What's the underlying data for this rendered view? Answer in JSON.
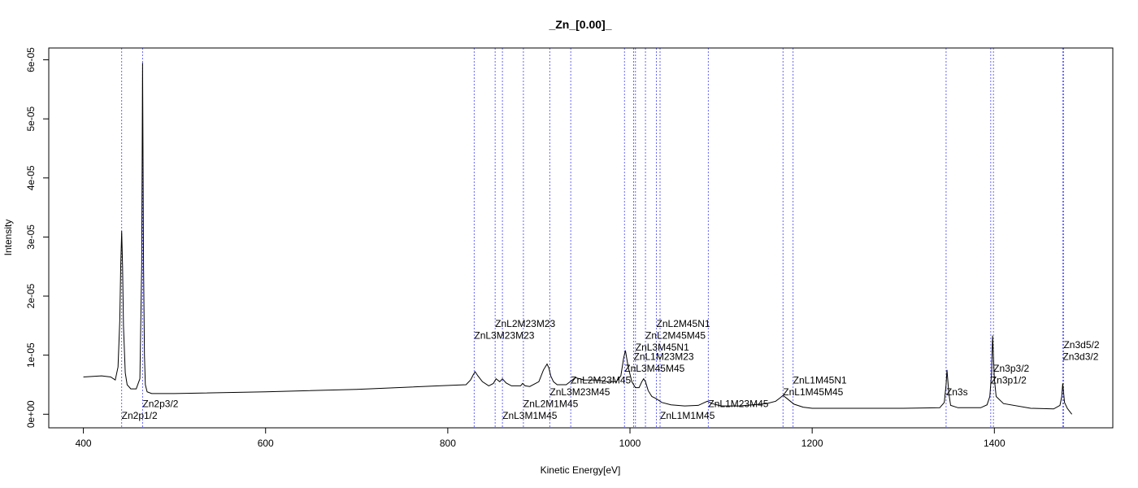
{
  "chart_data": {
    "type": "line",
    "title": "_Zn_[0.00]_",
    "xlabel": "Kinetic Energy[eV]",
    "ylabel": "Intensity",
    "xlim": [
      362,
      1530
    ],
    "ylim": [
      -2.3e-06,
      6.2e-05
    ],
    "x_ticks": [
      {
        "value": 400,
        "label": "400"
      },
      {
        "value": 600,
        "label": "600"
      },
      {
        "value": 800,
        "label": "800"
      },
      {
        "value": 1000,
        "label": "1000"
      },
      {
        "value": 1200,
        "label": "1200"
      },
      {
        "value": 1400,
        "label": "1400"
      }
    ],
    "y_ticks": [
      {
        "value": 0,
        "label": "0e+00"
      },
      {
        "value": 1e-05,
        "label": "1e-05"
      },
      {
        "value": 2e-05,
        "label": "2e-05"
      },
      {
        "value": 3e-05,
        "label": "3e-05"
      },
      {
        "value": 4e-05,
        "label": "4e-05"
      },
      {
        "value": 5e-05,
        "label": "5e-05"
      },
      {
        "value": 6e-05,
        "label": "6e-05"
      }
    ],
    "grid": false,
    "line_color": "#000000",
    "marker_line_color": "#6666ff",
    "series": [
      {
        "x": [
          400,
          420,
          430,
          435,
          438,
          440,
          441,
          442,
          443,
          444,
          446,
          448,
          452,
          458,
          462,
          464,
          465,
          466,
          467,
          468,
          470,
          475,
          480,
          500,
          600,
          700,
          790,
          820,
          825,
          828,
          830,
          833,
          838,
          845,
          850,
          853,
          857,
          860,
          864,
          870,
          880,
          882,
          885,
          890,
          900,
          905,
          909,
          911,
          913,
          916,
          920,
          930,
          940,
          950,
          965,
          975,
          985,
          990,
          993,
          995,
          998,
          1002,
          1006,
          1010,
          1013,
          1015,
          1017,
          1020,
          1024,
          1028,
          1030,
          1035,
          1045,
          1060,
          1075,
          1082,
          1085,
          1090,
          1100,
          1120,
          1150,
          1160,
          1165,
          1168,
          1172,
          1180,
          1190,
          1200,
          1300,
          1340,
          1345,
          1347,
          1348,
          1350,
          1352,
          1360,
          1385,
          1392,
          1395,
          1397,
          1398,
          1400,
          1402,
          1410,
          1440,
          1465,
          1472,
          1474,
          1475,
          1477,
          1480,
          1485
        ],
        "y": [
          6.3e-06,
          6.5e-06,
          6.3e-06,
          5.8e-06,
          8e-06,
          1.6e-05,
          2.5e-05,
          3.1e-05,
          2.5e-05,
          1.5e-05,
          7e-06,
          5e-06,
          4.3e-06,
          4.3e-06,
          6e-06,
          2.5e-05,
          5.95e-05,
          2.5e-05,
          1e-05,
          5e-06,
          3.8e-06,
          3.5e-06,
          3.5e-06,
          3.5e-06,
          3.8e-06,
          4.2e-06,
          4.8e-06,
          5e-06,
          5.8e-06,
          6.7e-06,
          7.2e-06,
          6.5e-06,
          5.5e-06,
          4.8e-06,
          5.2e-06,
          6e-06,
          5.5e-06,
          6e-06,
          5.3e-06,
          4.8e-06,
          4.8e-06,
          5.2e-06,
          4.8e-06,
          4.7e-06,
          5.5e-06,
          7.5e-06,
          8.5e-06,
          7.8e-06,
          6.5e-06,
          5.5e-06,
          5e-06,
          5e-06,
          6.2e-06,
          5.8e-06,
          5.8e-06,
          5.5e-06,
          5.5e-06,
          6.5e-06,
          9.5e-06,
          1.08e-05,
          8e-06,
          5.5e-06,
          4.5e-06,
          4.5e-06,
          5.5e-06,
          6e-06,
          5.5e-06,
          4e-06,
          3e-06,
          2.7e-06,
          2.5e-06,
          2e-06,
          1.6e-06,
          1.4e-06,
          1.5e-06,
          2e-06,
          2.2e-06,
          1.8e-06,
          1.4e-06,
          1.4e-06,
          1.8e-06,
          2.2e-06,
          2.8e-06,
          3.2e-06,
          2.7e-06,
          1.7e-06,
          1.2e-06,
          1e-06,
          1e-06,
          1.1e-06,
          2e-06,
          5e-06,
          7.5e-06,
          3.5e-06,
          1.5e-06,
          1.1e-06,
          1.1e-06,
          1.6e-06,
          3e-06,
          7e-06,
          1.33e-05,
          6e-06,
          3e-06,
          1.8e-06,
          1e-06,
          9e-07,
          1.5e-06,
          3e-06,
          5.2e-06,
          2e-06,
          1e-06,
          0
        ]
      }
    ],
    "markers": [
      {
        "x": 442,
        "label": "Zn2p1/2",
        "label_y": -8e-07,
        "anchor": "start"
      },
      {
        "x": 465,
        "label": "Zn2p3/2",
        "label_y": 1.2e-06,
        "anchor": "start"
      },
      {
        "x": 829,
        "label": "ZnL3M23M23",
        "label_y": 1.28e-05,
        "anchor": "start"
      },
      {
        "x": 852,
        "label": "ZnL2M23M23",
        "label_y": 1.48e-05,
        "anchor": "start"
      },
      {
        "x": 860,
        "label": "ZnL3M1M45",
        "label_y": -8e-07,
        "anchor": "start"
      },
      {
        "x": 883,
        "label": "ZnL2M1M45",
        "label_y": 1.2e-06,
        "anchor": "start"
      },
      {
        "x": 912,
        "label": "ZnL3M23M45",
        "label_y": 3.2e-06,
        "anchor": "start"
      },
      {
        "x": 935,
        "label": "ZnL2M23M45",
        "label_y": 5.2e-06,
        "anchor": "start"
      },
      {
        "x": 994,
        "label": "ZnL3M45M45",
        "label_y": 7.2e-06,
        "anchor": "start"
      },
      {
        "x": 1004,
        "label": "ZnL1M23M23",
        "label_y": 9.2e-06,
        "anchor": "start"
      },
      {
        "x": 1006,
        "label": "ZnL3M45N1",
        "label_y": 1.08e-05,
        "anchor": "start"
      },
      {
        "x": 1017,
        "label": "ZnL2M45M45",
        "label_y": 1.28e-05,
        "anchor": "start"
      },
      {
        "x": 1029,
        "label": "ZnL2M45N1",
        "label_y": 1.48e-05,
        "anchor": "start"
      },
      {
        "x": 1033,
        "label": "ZnL1M1M45",
        "label_y": -8e-07,
        "anchor": "start"
      },
      {
        "x": 1086,
        "label": "ZnL1M23M45",
        "label_y": 1.2e-06,
        "anchor": "start"
      },
      {
        "x": 1168,
        "label": "ZnL1M45M45",
        "label_y": 3.2e-06,
        "anchor": "start"
      },
      {
        "x": 1179,
        "label": "ZnL1M45N1",
        "label_y": 5.2e-06,
        "anchor": "start"
      },
      {
        "x": 1347,
        "label": "Zn3s",
        "label_y": 3.2e-06,
        "anchor": "start"
      },
      {
        "x": 1396,
        "label": "Zn3p1/2",
        "label_y": 5.2e-06,
        "anchor": "start"
      },
      {
        "x": 1399,
        "label": "Zn3p3/2",
        "label_y": 7.2e-06,
        "anchor": "start"
      },
      {
        "x": 1475,
        "label": "Zn3d3/2",
        "label_y": 9.2e-06,
        "anchor": "start"
      },
      {
        "x": 1476,
        "label": "Zn3d5/2",
        "label_y": 1.12e-05,
        "anchor": "start"
      }
    ]
  }
}
